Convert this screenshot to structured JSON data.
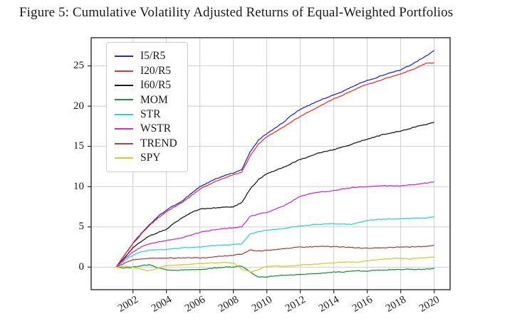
{
  "figure": {
    "title": "Figure 5: Cumulative Volatility Adjusted Returns of Equal-Weighted Portfolios"
  },
  "chart_data": {
    "type": "line",
    "title": "Figure 5: Cumulative Volatility Adjusted Returns of Equal-Weighted Portfolios",
    "xlabel": "",
    "ylabel": "",
    "grid": true,
    "legend_position": "upper left",
    "xlim": [
      1999.5,
      2020.95
    ],
    "ylim": [
      -2.8,
      28.5
    ],
    "x_ticks": [
      2002,
      2004,
      2006,
      2008,
      2010,
      2012,
      2014,
      2016,
      2018,
      2020
    ],
    "y_ticks": [
      0,
      5,
      10,
      15,
      20,
      25
    ],
    "colors": {
      "grid": "#c9c9c9",
      "frame": "#2b2b2b",
      "text": "#1a1a1a"
    },
    "x": [
      2001,
      2001.5,
      2002,
      2002.5,
      2003,
      2003.5,
      2004,
      2004.5,
      2005,
      2005.5,
      2006,
      2006.5,
      2007,
      2007.5,
      2008,
      2008.5,
      2009,
      2009.5,
      2010,
      2010.5,
      2011,
      2011.5,
      2012,
      2012.5,
      2013,
      2013.5,
      2014,
      2014.5,
      2015,
      2015.5,
      2016,
      2016.5,
      2017,
      2017.5,
      2018,
      2018.5,
      2019,
      2019.5,
      2020
    ],
    "series": [
      {
        "name": "I5/R5",
        "color": "#2727d3",
        "values": [
          0,
          1.5,
          3,
          4.2,
          5.3,
          6.3,
          7.1,
          7.7,
          8.3,
          9.2,
          10,
          10.5,
          11,
          11.4,
          11.7,
          12.1,
          14.3,
          15.8,
          16.6,
          17.3,
          18,
          18.9,
          19.6,
          20.1,
          20.6,
          21,
          21.4,
          21.8,
          22.3,
          22.8,
          23.2,
          23.5,
          23.9,
          24.2,
          24.5,
          25,
          25.6,
          26.2,
          26.9
        ]
      },
      {
        "name": "I20/R5",
        "color": "#e8342a",
        "values": [
          0,
          1.5,
          2.9,
          4.1,
          5.2,
          6.1,
          6.9,
          7.5,
          8.1,
          8.9,
          9.7,
          10.2,
          10.7,
          11.1,
          11.5,
          11.8,
          13.8,
          15.3,
          16.2,
          16.8,
          17.4,
          18.1,
          18.7,
          19.3,
          19.8,
          20.4,
          20.9,
          21.3,
          21.8,
          22.3,
          22.7,
          23,
          23.4,
          23.7,
          24,
          24.4,
          24.8,
          25.3,
          25.4
        ]
      },
      {
        "name": "I60/R5",
        "color": "#1c1c1c",
        "values": [
          0,
          1.2,
          2.4,
          3.2,
          3.9,
          4.3,
          4.7,
          5.5,
          6.2,
          6.8,
          7.2,
          7.3,
          7.4,
          7.45,
          7.5,
          8,
          9.7,
          10.9,
          11.6,
          12,
          12.4,
          12.9,
          13.4,
          13.7,
          14.1,
          14.4,
          14.6,
          14.9,
          15.2,
          15.6,
          15.9,
          16.2,
          16.5,
          16.7,
          16.9,
          17.2,
          17.5,
          17.7,
          18
        ]
      },
      {
        "name": "MOM",
        "color": "#1e9639",
        "values": [
          0,
          -0.1,
          0,
          0.2,
          0.3,
          -0.1,
          -0.3,
          -0.4,
          -0.35,
          -0.3,
          -0.3,
          -0.2,
          -0.1,
          0,
          0,
          0.15,
          -0.6,
          -1.25,
          -1.2,
          -1.1,
          -1,
          -1,
          -0.9,
          -0.85,
          -0.8,
          -0.7,
          -0.6,
          -0.6,
          -0.5,
          -0.45,
          -0.5,
          -0.4,
          -0.35,
          -0.3,
          -0.3,
          -0.25,
          -0.3,
          -0.25,
          -0.15
        ]
      },
      {
        "name": "STR",
        "color": "#2fd3d8",
        "values": [
          0,
          0.8,
          1.5,
          1.9,
          2.1,
          2.15,
          2.2,
          2.3,
          2.4,
          2.45,
          2.5,
          2.6,
          2.7,
          2.75,
          2.8,
          2.9,
          4.1,
          4.4,
          4.6,
          4.7,
          4.8,
          5,
          5.1,
          5.2,
          5.3,
          5.35,
          5.4,
          5.35,
          5.3,
          5.55,
          5.8,
          5.9,
          5.95,
          6,
          6,
          6.05,
          6.1,
          6.1,
          6.25
        ]
      },
      {
        "name": "WSTR",
        "color": "#cf2fd0",
        "values": [
          0,
          1,
          1.9,
          2.5,
          2.9,
          3.1,
          3.3,
          3.5,
          3.7,
          4,
          4.3,
          4.5,
          4.7,
          4.8,
          4.9,
          5,
          6.3,
          6.6,
          6.8,
          7.2,
          7.6,
          8.2,
          8.8,
          9.1,
          9.3,
          9.4,
          9.5,
          9.7,
          9.85,
          9.95,
          10,
          10.05,
          10.1,
          10.1,
          10.1,
          10.2,
          10.3,
          10.45,
          10.6
        ]
      },
      {
        "name": "TREND",
        "color": "#b24343",
        "values": [
          0,
          0.5,
          0.9,
          1.05,
          1.1,
          1.1,
          1.15,
          1.15,
          1.15,
          1.15,
          1.15,
          1.2,
          1.3,
          1.4,
          1.5,
          1.6,
          2.15,
          2,
          2.1,
          2.2,
          2.3,
          2.4,
          2.5,
          2.5,
          2.55,
          2.6,
          2.55,
          2.5,
          2.45,
          2.4,
          2.35,
          2.4,
          2.4,
          2.45,
          2.5,
          2.5,
          2.55,
          2.6,
          2.75
        ]
      },
      {
        "name": "SPY",
        "color": "#d3cc33",
        "values": [
          0,
          0.1,
          0,
          -0.3,
          -0.45,
          -0.1,
          0.2,
          0.25,
          0.3,
          0.35,
          0.45,
          0.5,
          0.55,
          0.6,
          0.5,
          -0.2,
          -0.6,
          -0.3,
          0.1,
          0.15,
          0.1,
          0.15,
          0.25,
          0.3,
          0.4,
          0.45,
          0.55,
          0.6,
          0.65,
          0.6,
          0.8,
          0.9,
          1,
          1.05,
          1.1,
          1,
          1.1,
          1.2,
          1.25
        ]
      }
    ]
  }
}
